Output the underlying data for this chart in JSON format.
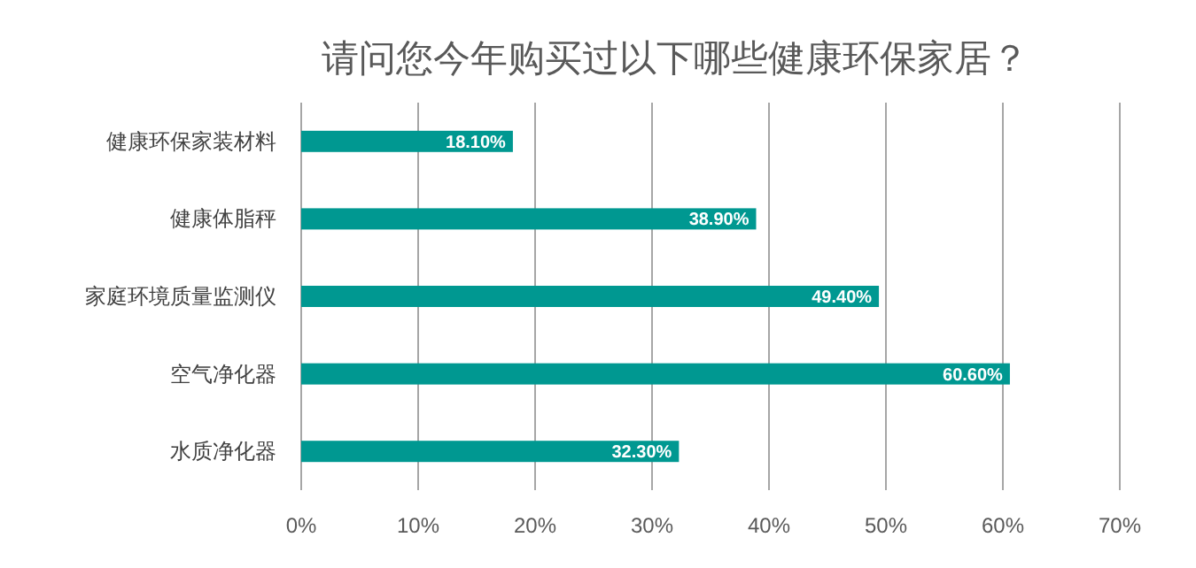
{
  "chart_data": {
    "type": "bar",
    "orientation": "horizontal",
    "title": "请问您今年购买过以下哪些健康环保家居？",
    "categories": [
      "健康环保家装材料",
      "健康体脂秤",
      "家庭环境质量监测仪",
      "空气净化器",
      "水质净化器"
    ],
    "values": [
      18.1,
      38.9,
      49.4,
      60.6,
      32.3
    ],
    "value_labels": [
      "18.10%",
      "38.90%",
      "49.40%",
      "60.60%",
      "32.30%"
    ],
    "color": "#009891",
    "xlim": [
      0,
      70
    ],
    "xticks": [
      {
        "value": 0,
        "label": "0%"
      },
      {
        "value": 10,
        "label": "10%"
      },
      {
        "value": 20,
        "label": "20%"
      },
      {
        "value": 30,
        "label": "30%"
      },
      {
        "value": 40,
        "label": "40%"
      },
      {
        "value": 50,
        "label": "50%"
      },
      {
        "value": 60,
        "label": "60%"
      },
      {
        "value": 70,
        "label": "70%"
      }
    ],
    "grid": "x"
  }
}
